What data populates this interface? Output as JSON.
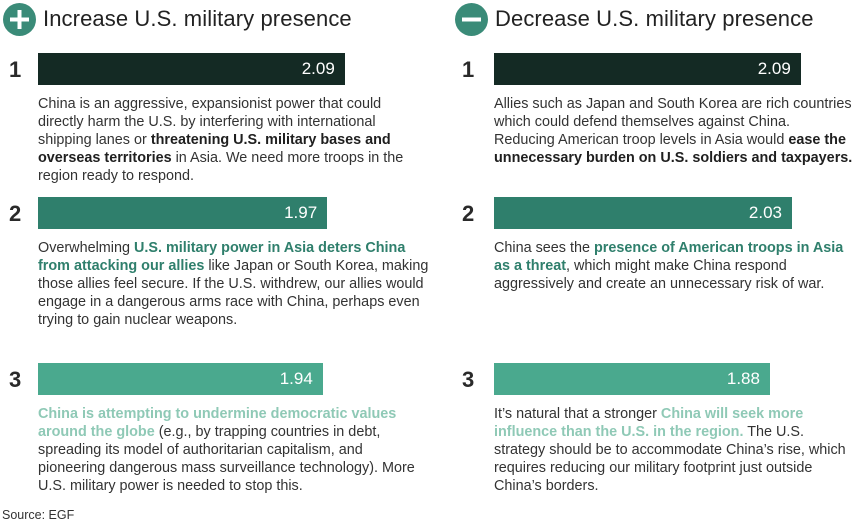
{
  "chart_data": {
    "type": "bar",
    "colors": [
      "#142a24",
      "#2f7f6c",
      "#4aa98e"
    ],
    "emphasis_colors": [
      "#1f1f1f",
      "#2f7f6c",
      "#8fc9b6"
    ],
    "xlim": [
      0,
      2.5
    ],
    "panels": [
      {
        "title": "Increase U.S. military presence",
        "icon": "plus-icon",
        "items": [
          {
            "rank": "1",
            "value": 2.09,
            "label": "2.09",
            "text_before": "China is an aggressive, expansionist power that could directly harm the U.S. by interfering with international shipping lanes or ",
            "emphasis": "threatening U.S. military bases and overseas territories",
            "text_after": " in Asia. We need more troops in the region ready to respond."
          },
          {
            "rank": "2",
            "value": 1.97,
            "label": "1.97",
            "text_before": "Overwhelming ",
            "emphasis": "U.S. military power in Asia deters China from attacking our allies",
            "text_after": " like Japan or South Korea, making those allies feel secure. If the U.S. withdrew, our allies would engage in a dangerous arms race with China, perhaps even trying to gain nuclear weapons."
          },
          {
            "rank": "3",
            "value": 1.94,
            "label": "1.94",
            "text_before": "",
            "emphasis": "China is attempting to undermine democratic values around the globe",
            "text_after": " (e.g., by trapping countries in debt, spreading its model of authoritarian capitalism, and pioneering dangerous mass surveillance technology). More U.S. military power is needed to stop this."
          }
        ]
      },
      {
        "title": "Decrease U.S. military presence",
        "icon": "minus-icon",
        "items": [
          {
            "rank": "1",
            "value": 2.09,
            "label": "2.09",
            "text_before": "Allies such as Japan and South Korea are rich countries which could defend themselves against China. Reducing American troop levels in Asia would ",
            "emphasis": "ease the unnecessary burden on U.S. soldiers and taxpayers.",
            "text_after": ""
          },
          {
            "rank": "2",
            "value": 2.03,
            "label": "2.03",
            "text_before": "China sees the ",
            "emphasis": "presence of American troops in Asia as a threat",
            "text_after": ", which might make China respond aggressively and create an unnecessary risk of war."
          },
          {
            "rank": "3",
            "value": 1.88,
            "label": "1.88",
            "text_before": "It’s natural that a stronger ",
            "emphasis": "China will seek more influence than the U.S. in the region.",
            "text_after": " The U.S. strategy should be to accommodate China’s rise, which requires reducing our military footprint just outside China’s borders."
          }
        ]
      }
    ]
  },
  "source": "Source: EGF"
}
